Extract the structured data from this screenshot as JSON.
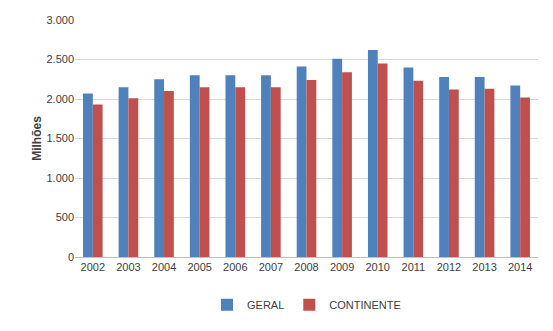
{
  "chart_data": {
    "type": "bar",
    "y_label": "Milhões",
    "categories": [
      "2002",
      "2003",
      "2004",
      "2005",
      "2006",
      "2007",
      "2008",
      "2009",
      "2010",
      "2011",
      "2012",
      "2013",
      "2014"
    ],
    "series": [
      {
        "name": "GERAL",
        "color": "#4f81bd",
        "values": [
          2070,
          2150,
          2250,
          2300,
          2300,
          2300,
          2410,
          2510,
          2620,
          2400,
          2280,
          2280,
          2170
        ]
      },
      {
        "name": "CONTINENTE",
        "color": "#c0504d",
        "values": [
          1930,
          2010,
          2100,
          2150,
          2150,
          2150,
          2240,
          2340,
          2450,
          2230,
          2120,
          2130,
          2020
        ]
      }
    ],
    "ylim": [
      0,
      3000
    ],
    "yticks": [
      0,
      500,
      {
        "value": 1000,
        "label": "1.000"
      },
      {
        "value": 1500,
        "label": "1.500"
      },
      {
        "value": 2000,
        "label": "2.000"
      },
      {
        "value": 2500,
        "label": "2.500"
      },
      {
        "value": 3000,
        "label": "3.000"
      }
    ],
    "grid": true,
    "legend": "bottom"
  }
}
